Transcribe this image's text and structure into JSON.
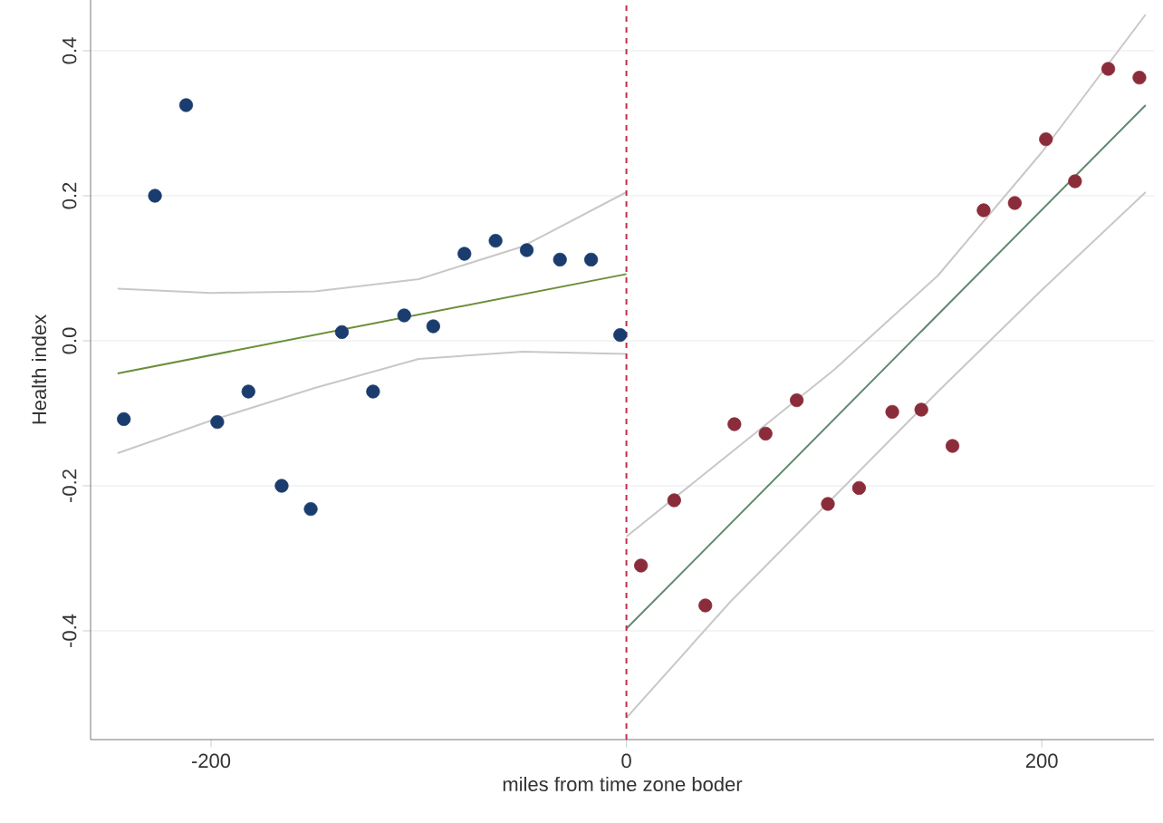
{
  "chart_data": {
    "type": "scatter",
    "xlabel": "miles from time zone boder",
    "ylabel": "Health index",
    "xlim": [
      -258,
      254
    ],
    "ylim": [
      -0.55,
      0.47
    ],
    "xticks": [
      -200,
      0,
      200
    ],
    "yticks": [
      -0.4,
      -0.2,
      {
        "value": 0,
        "label": "0.0"
      },
      0.2,
      0.4
    ],
    "grid": "y",
    "marker": "circle",
    "ref_lines": [
      {
        "axis": "x",
        "value": 0,
        "color": "#c0304a",
        "line_style": "dashed"
      }
    ],
    "series": [
      {
        "color": "#1a3c6e",
        "x": [
          -242,
          -227,
          -212,
          -197,
          -182,
          -166,
          -152,
          -137,
          -122,
          -107,
          -93,
          -78,
          -63,
          -48,
          -32,
          -17,
          -3
        ],
        "values": [
          -0.108,
          0.2,
          0.325,
          -0.112,
          -0.07,
          -0.2,
          -0.232,
          0.012,
          -0.07,
          0.035,
          0.02,
          0.12,
          0.138,
          0.125,
          0.112,
          0.112,
          0.008
        ]
      },
      {
        "color": "#8b2c3a",
        "x": [
          7,
          23,
          38,
          52,
          67,
          82,
          97,
          112,
          128,
          142,
          157,
          172,
          187,
          202,
          216,
          232,
          247
        ],
        "values": [
          -0.31,
          -0.22,
          -0.365,
          -0.115,
          -0.128,
          -0.082,
          -0.225,
          -0.203,
          -0.098,
          -0.095,
          -0.145,
          0.18,
          0.19,
          0.278,
          0.22,
          0.375,
          0.363
        ]
      },
      {
        "type": "line",
        "color": "#6b8e3a",
        "marker": "none",
        "x": [
          -245,
          0
        ],
        "values": [
          -0.045,
          0.092
        ]
      },
      {
        "type": "line",
        "color": "#c8c8c8",
        "marker": "none",
        "x": [
          -245,
          -200,
          -150,
          -100,
          -50,
          0
        ],
        "values": [
          0.072,
          0.066,
          0.068,
          0.085,
          0.13,
          0.205
        ]
      },
      {
        "type": "line",
        "color": "#c8c8c8",
        "marker": "none",
        "x": [
          -245,
          -200,
          -150,
          -100,
          -50,
          0
        ],
        "values": [
          -0.155,
          -0.11,
          -0.065,
          -0.025,
          -0.015,
          -0.018
        ]
      },
      {
        "type": "line",
        "color": "#5f8a6e",
        "marker": "none",
        "x": [
          0,
          250
        ],
        "values": [
          -0.397,
          0.325
        ]
      },
      {
        "type": "line",
        "color": "#c8c8c8",
        "marker": "none",
        "x": [
          0,
          50,
          100,
          150,
          200,
          250
        ],
        "values": [
          -0.27,
          -0.155,
          -0.04,
          0.09,
          0.26,
          0.45
        ]
      },
      {
        "type": "line",
        "color": "#c8c8c8",
        "marker": "none",
        "x": [
          0,
          50,
          100,
          150,
          200,
          250
        ],
        "values": [
          -0.52,
          -0.36,
          -0.215,
          -0.07,
          0.07,
          0.205
        ]
      }
    ]
  }
}
